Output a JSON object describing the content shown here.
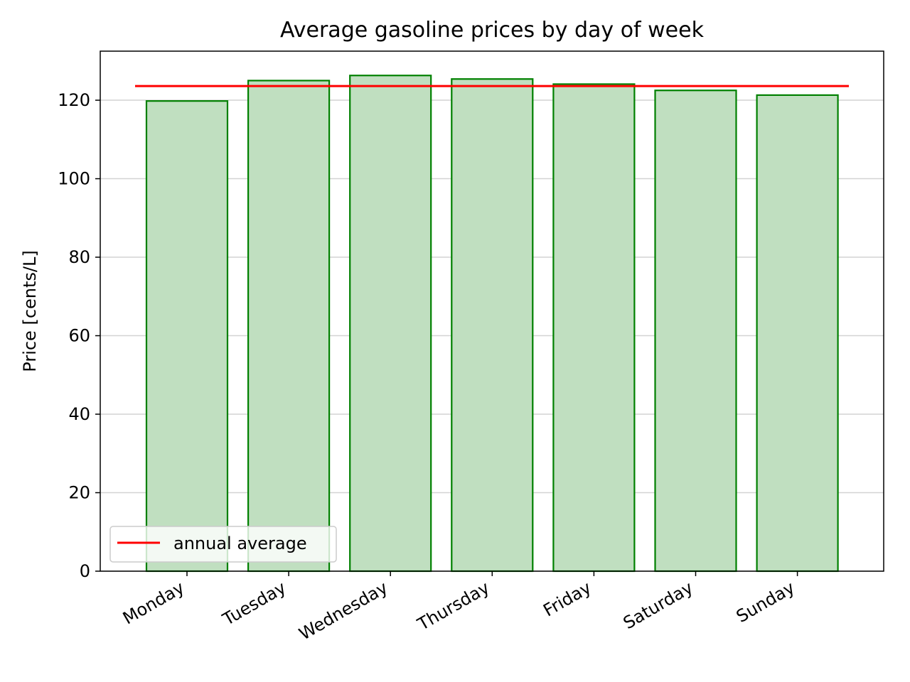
{
  "chart_data": {
    "type": "bar",
    "title": "Average gasoline prices by day of week",
    "xlabel": "",
    "ylabel": "Price [cents/L]",
    "ylim": [
      0,
      132.5
    ],
    "yticks": [
      0,
      20,
      40,
      60,
      80,
      100,
      120
    ],
    "categories": [
      "Monday",
      "Tuesday",
      "Wednesday",
      "Thursday",
      "Friday",
      "Saturday",
      "Sunday"
    ],
    "values": [
      119.8,
      125.0,
      126.3,
      125.4,
      124.1,
      122.5,
      121.3
    ],
    "reference_line": {
      "label": "annual average",
      "value": 123.6,
      "color": "#ff0000"
    },
    "bar_fill": "#c0dfc0",
    "bar_edge": "#008000",
    "grid": "horizontal",
    "legend_position": "lower-left"
  }
}
